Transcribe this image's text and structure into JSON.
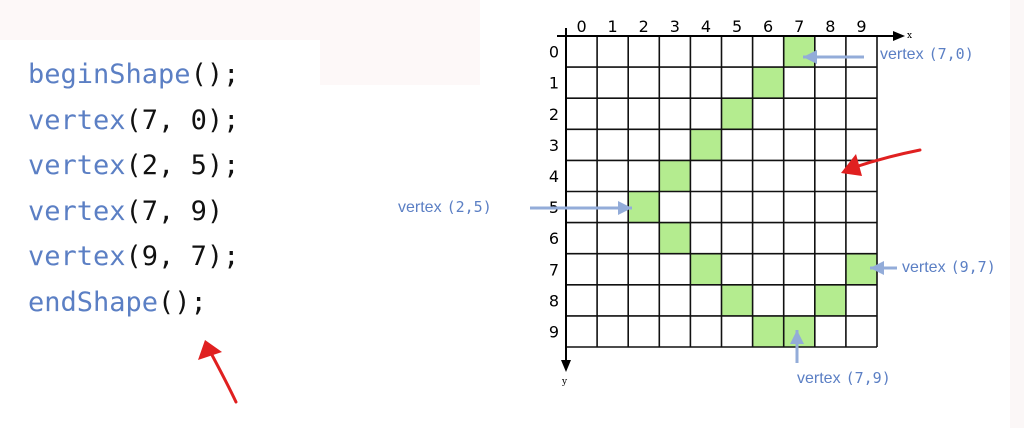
{
  "code": {
    "lines": [
      {
        "fn": "beginShape",
        "rest": "();"
      },
      {
        "fn": "vertex",
        "rest": "(7, 0);"
      },
      {
        "fn": "vertex",
        "rest": "(2, 5);"
      },
      {
        "fn": "vertex",
        "rest": "(7, 9)"
      },
      {
        "fn": "vertex",
        "rest": "(9, 7);"
      },
      {
        "fn": "endShape",
        "rest": "();"
      }
    ]
  },
  "grid": {
    "x_ticks": [
      "0",
      "1",
      "2",
      "3",
      "4",
      "5",
      "6",
      "7",
      "8",
      "9"
    ],
    "y_ticks": [
      "0",
      "1",
      "2",
      "3",
      "4",
      "5",
      "6",
      "7",
      "8",
      "9"
    ],
    "x_axis_label": "x",
    "y_axis_label": "y",
    "filled_cells": [
      [
        7,
        0
      ],
      [
        6,
        1
      ],
      [
        5,
        2
      ],
      [
        4,
        3
      ],
      [
        3,
        4
      ],
      [
        2,
        5
      ],
      [
        3,
        6
      ],
      [
        4,
        7
      ],
      [
        5,
        8
      ],
      [
        6,
        9
      ],
      [
        7,
        9
      ],
      [
        8,
        8
      ],
      [
        9,
        7
      ]
    ],
    "fill_color": "#b4ec8f",
    "line_color": "#111111"
  },
  "labels": {
    "v70": {
      "word": "vertex",
      "coords": "(7,0)"
    },
    "v25": {
      "word": "vertex",
      "coords": "(2,5)"
    },
    "v97": {
      "word": "vertex",
      "coords": "(9,7)"
    },
    "v79": {
      "word": "vertex",
      "coords": "(7,9)"
    }
  },
  "colors": {
    "accent": "#5b7fc4",
    "arrow_blue": "#93acd9",
    "annotation_red": "#e02020"
  }
}
